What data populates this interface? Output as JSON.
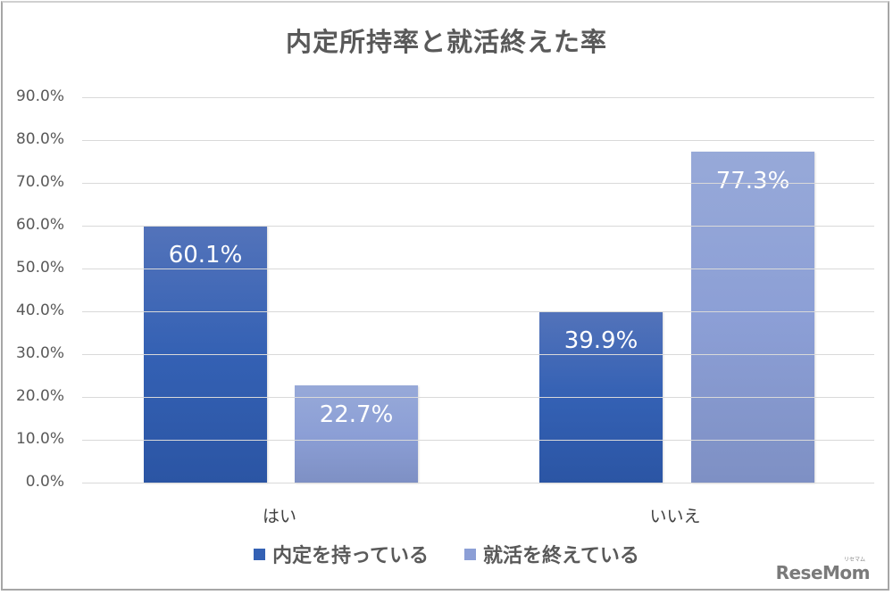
{
  "chart_data": {
    "type": "bar",
    "title": "内定所持率と就活終えた率",
    "xlabel": "",
    "ylabel": "",
    "ylim": [
      0,
      90
    ],
    "yticks": [
      "0.0%",
      "10.0%",
      "20.0%",
      "30.0%",
      "40.0%",
      "50.0%",
      "60.0%",
      "70.0%",
      "80.0%",
      "90.0%"
    ],
    "grid": true,
    "legend_position": "bottom",
    "categories": [
      "はい",
      "いいえ"
    ],
    "series": [
      {
        "name": "内定を持っている",
        "color": "#3461b4",
        "values": [
          60.1,
          39.9
        ],
        "labels": [
          "60.1%",
          "39.9%"
        ]
      },
      {
        "name": "就活を終えている",
        "color": "#8c9fd6",
        "values": [
          22.7,
          77.3
        ],
        "labels": [
          "22.7%",
          "77.3%"
        ]
      }
    ]
  },
  "watermark": {
    "text": "ReseMom",
    "sub": "リセマム"
  }
}
